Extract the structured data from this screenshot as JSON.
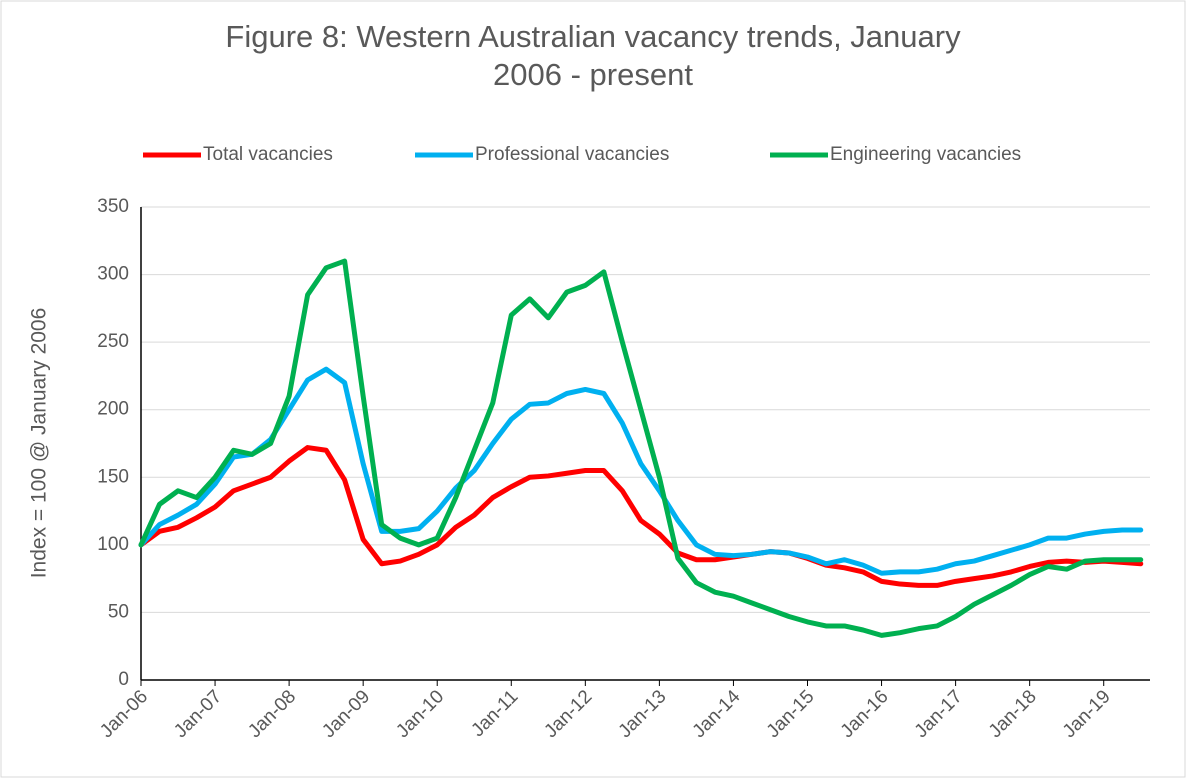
{
  "chart_data": {
    "type": "line",
    "title": "Figure 8: Western Australian vacancy trends, January 2006 - present",
    "y_label": "Index = 100 @ January 2006",
    "categories": [
      "Jan-06",
      null,
      null,
      null,
      "Jan-07",
      null,
      null,
      null,
      "Jan-08",
      null,
      null,
      null,
      "Jan-09",
      null,
      null,
      null,
      "Jan-10",
      null,
      null,
      null,
      "Jan-11",
      null,
      null,
      null,
      "Jan-12",
      null,
      null,
      null,
      "Jan-13",
      null,
      null,
      null,
      "Jan-14",
      null,
      null,
      null,
      "Jan-15",
      null,
      null,
      null,
      "Jan-16",
      null,
      null,
      null,
      "Jan-17",
      null,
      null,
      null,
      "Jan-18",
      null,
      null,
      null,
      "Jan-19",
      null,
      null
    ],
    "series": [
      {
        "name": "Total vacancies",
        "color": "#ff0000",
        "values": [
          100,
          110,
          113,
          120,
          128,
          140,
          145,
          150,
          162,
          172,
          170,
          148,
          104,
          86,
          88,
          93,
          100,
          113,
          122,
          135,
          143,
          150,
          151,
          153,
          155,
          155,
          140,
          118,
          108,
          94,
          89,
          89,
          91,
          93,
          95,
          94,
          90,
          85,
          83,
          80,
          73,
          71,
          70,
          70,
          73,
          75,
          77,
          80,
          84,
          87,
          88,
          87,
          88,
          87,
          86
        ]
      },
      {
        "name": "Professional vacancies",
        "color": "#00b0f0",
        "values": [
          100,
          115,
          122,
          130,
          145,
          165,
          167,
          178,
          200,
          222,
          230,
          220,
          160,
          110,
          110,
          112,
          125,
          142,
          155,
          175,
          193,
          204,
          205,
          212,
          215,
          212,
          190,
          160,
          140,
          118,
          100,
          93,
          92,
          93,
          95,
          94,
          91,
          86,
          89,
          85,
          79,
          80,
          80,
          82,
          86,
          88,
          92,
          96,
          100,
          105,
          105,
          108,
          110,
          111,
          111
        ]
      },
      {
        "name": "Engineering vacancies",
        "color": "#00b050",
        "values": [
          100,
          130,
          140,
          135,
          150,
          170,
          167,
          175,
          210,
          285,
          305,
          310,
          210,
          115,
          105,
          100,
          105,
          135,
          170,
          205,
          270,
          282,
          268,
          287,
          292,
          302,
          250,
          200,
          150,
          90,
          72,
          65,
          62,
          57,
          52,
          47,
          43,
          40,
          40,
          37,
          33,
          35,
          38,
          40,
          47,
          56,
          63,
          70,
          78,
          84,
          82,
          88,
          89,
          89,
          89
        ]
      }
    ],
    "ylim": [
      0,
      350
    ],
    "yticks": [
      0,
      50,
      100,
      150,
      200,
      250,
      300,
      350
    ],
    "grid": true,
    "legend": "top"
  }
}
